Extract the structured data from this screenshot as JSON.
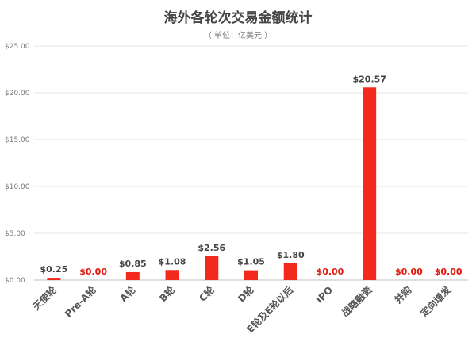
{
  "chart_data": {
    "type": "bar",
    "title": "海外各轮次交易金额统计",
    "subtitle": "（ 单位：亿美元 ）",
    "categories": [
      "天使轮",
      "Pre-A轮",
      "A轮",
      "B轮",
      "C轮",
      "D轮",
      "E轮及E轮以后",
      "IPO",
      "战略融资",
      "并购",
      "定向增发"
    ],
    "values": [
      0.25,
      0,
      0.85,
      1.08,
      2.56,
      1.05,
      1.8,
      0,
      20.57,
      0,
      0
    ],
    "value_labels": [
      "$0.25",
      "$0.00",
      "$0.85",
      "$1.08",
      "$2.56",
      "$1.05",
      "$1.80",
      "$0.00",
      "$20.57",
      "$0.00",
      "$0.00"
    ],
    "ylim": [
      0,
      25
    ],
    "yticks": [
      0,
      5,
      10,
      15,
      20,
      25
    ],
    "ytick_labels": [
      "$0.00",
      "$5.00",
      "$10.00",
      "$15.00",
      "$20.00",
      "$25.00"
    ],
    "xlabel": "",
    "ylabel": "",
    "grid": true,
    "legend": "none",
    "colors": {
      "bar": "#f2291c",
      "zero_label": "#e3170b",
      "value_label": "#444444",
      "grid": "#e6e6e6",
      "axis": "#bfbfbf"
    }
  }
}
